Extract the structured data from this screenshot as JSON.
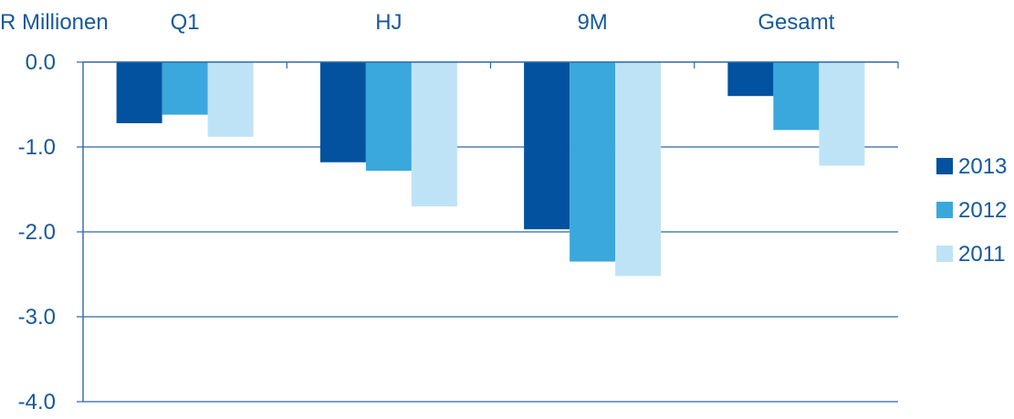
{
  "chart_data": {
    "type": "bar",
    "unit_label": "R Millionen",
    "categories": [
      "Q1",
      "HJ",
      "9M",
      "Gesamt"
    ],
    "series": [
      {
        "name": "2013",
        "color": "#02529f",
        "values": [
          -0.72,
          -1.18,
          -1.97,
          -0.4
        ]
      },
      {
        "name": "2012",
        "color": "#3aa8dc",
        "values": [
          -0.62,
          -1.28,
          -2.35,
          -0.8
        ]
      },
      {
        "name": "2011",
        "color": "#bfe3f6",
        "values": [
          -0.88,
          -1.7,
          -2.52,
          -1.22
        ]
      }
    ],
    "y_ticks": [
      "0.0",
      "-1.0",
      "-2.0",
      "-3.0",
      "-4.0"
    ],
    "ylim": [
      -4,
      0
    ],
    "legend_position": "right",
    "grid": true,
    "category_labels_position": "top"
  }
}
